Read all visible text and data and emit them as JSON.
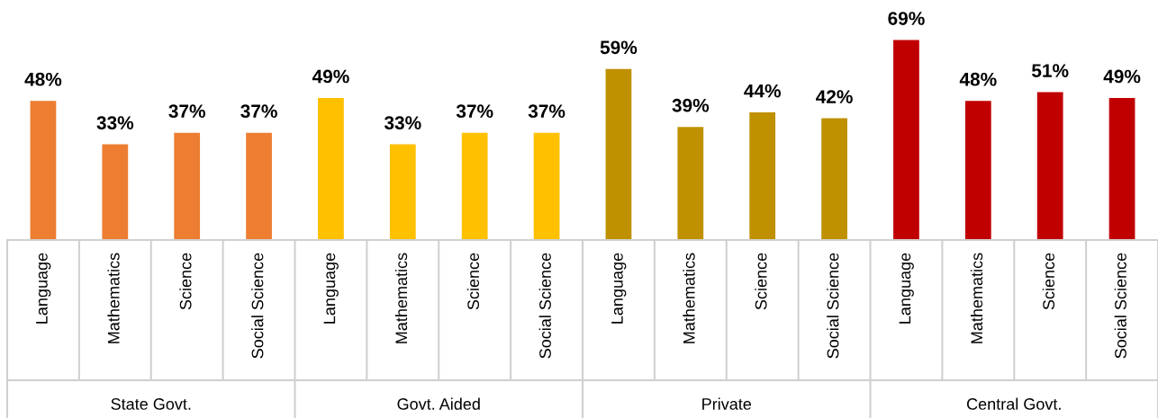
{
  "chart_data": {
    "type": "bar",
    "categories": [
      "Language",
      "Mathematics",
      "Science",
      "Social Science",
      "Language",
      "Mathematics",
      "Science",
      "Social Science",
      "Language",
      "Mathematics",
      "Science",
      "Social Science",
      "Language",
      "Mathematics",
      "Science",
      "Social Science"
    ],
    "values": [
      48,
      33,
      37,
      37,
      49,
      33,
      37,
      37,
      59,
      39,
      44,
      42,
      69,
      48,
      51,
      49
    ],
    "colors": [
      "#ed7d31",
      "#ed7d31",
      "#ed7d31",
      "#ed7d31",
      "#ffc000",
      "#ffc000",
      "#ffc000",
      "#ffc000",
      "#bf9000",
      "#bf9000",
      "#bf9000",
      "#bf9000",
      "#c00000",
      "#c00000",
      "#c00000",
      "#c00000"
    ],
    "value_labels": [
      "48%",
      "33%",
      "37%",
      "37%",
      "49%",
      "33%",
      "37%",
      "37%",
      "59%",
      "39%",
      "44%",
      "42%",
      "69%",
      "48%",
      "51%",
      "49%"
    ],
    "annotations": [
      "State Govt.",
      "Govt. Aided",
      "Private",
      "Central Govt."
    ],
    "tick_labels": "x",
    "grid": false,
    "legend": false
  }
}
